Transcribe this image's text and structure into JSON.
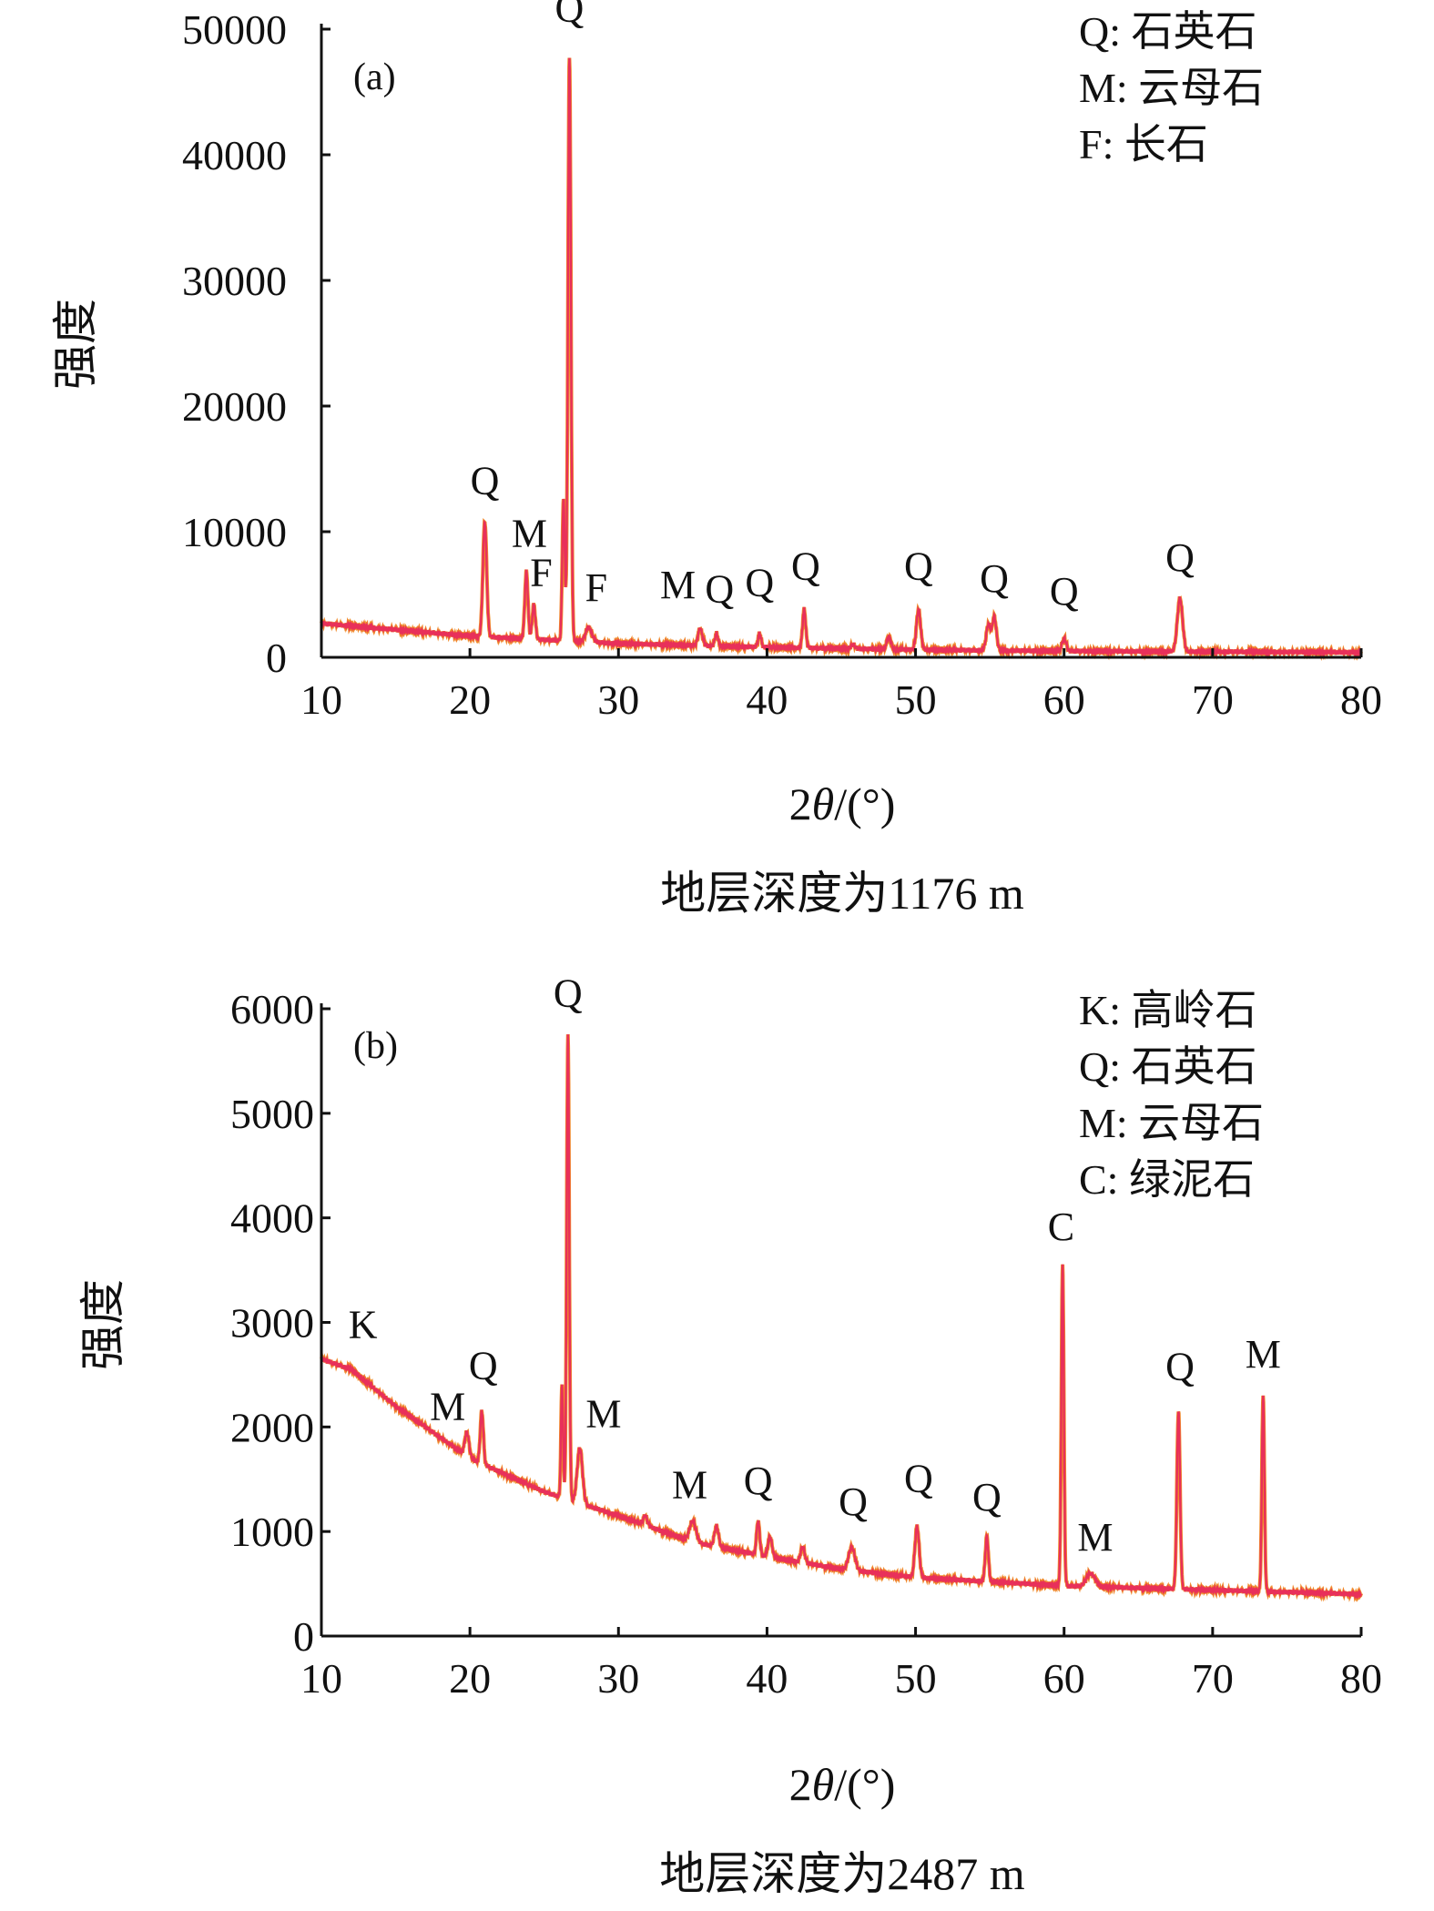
{
  "chart_data": [
    {
      "type": "line",
      "panel_label": "(a)",
      "xlabel_prefix": "2",
      "xlabel_theta": "θ",
      "xlabel_suffix": "/(°)",
      "ylabel": "强度",
      "caption": "地层深度为1176 m",
      "xlim": [
        10,
        80
      ],
      "ylim": [
        0,
        50000
      ],
      "x_ticks": [
        "10",
        "20",
        "30",
        "40",
        "50",
        "60",
        "70",
        "80"
      ],
      "y_ticks": [
        "0",
        "10000",
        "20000",
        "30000",
        "40000",
        "50000"
      ],
      "legend": [
        "Q: 石英石",
        "M: 云母石",
        "F: 长石"
      ],
      "line_color": "#e8305a",
      "baseline": [
        [
          10,
          2700
        ],
        [
          15,
          2200
        ],
        [
          20,
          1700
        ],
        [
          25,
          1400
        ],
        [
          30,
          1100
        ],
        [
          40,
          800
        ],
        [
          50,
          600
        ],
        [
          60,
          500
        ],
        [
          70,
          450
        ],
        [
          80,
          400
        ]
      ],
      "peaks": [
        {
          "x": 21.0,
          "y": 10800,
          "w": 0.18
        },
        {
          "x": 23.8,
          "y": 6800,
          "w": 0.15
        },
        {
          "x": 24.3,
          "y": 4200,
          "w": 0.15
        },
        {
          "x": 26.3,
          "y": 12600,
          "w": 0.12
        },
        {
          "x": 26.7,
          "y": 47800,
          "w": 0.14
        },
        {
          "x": 28.0,
          "y": 2400,
          "w": 0.3
        },
        {
          "x": 35.5,
          "y": 2300,
          "w": 0.2
        },
        {
          "x": 36.6,
          "y": 1900,
          "w": 0.15
        },
        {
          "x": 39.5,
          "y": 1900,
          "w": 0.15
        },
        {
          "x": 42.5,
          "y": 3800,
          "w": 0.15
        },
        {
          "x": 45.8,
          "y": 1000,
          "w": 0.2
        },
        {
          "x": 48.2,
          "y": 1600,
          "w": 0.2
        },
        {
          "x": 50.2,
          "y": 3800,
          "w": 0.2
        },
        {
          "x": 54.9,
          "y": 2600,
          "w": 0.2
        },
        {
          "x": 55.3,
          "y": 3200,
          "w": 0.2
        },
        {
          "x": 60.0,
          "y": 1500,
          "w": 0.2
        },
        {
          "x": 67.8,
          "y": 4700,
          "w": 0.25
        }
      ],
      "peak_labels": [
        {
          "text": "Q",
          "x": 21.0,
          "y": 13000
        },
        {
          "text": "M",
          "x": 24.0,
          "y": 8800
        },
        {
          "text": "F",
          "x": 24.8,
          "y": 5700
        },
        {
          "text": "Q",
          "x": 26.7,
          "y": 50600
        },
        {
          "text": "F",
          "x": 28.5,
          "y": 4500
        },
        {
          "text": "M",
          "x": 34.0,
          "y": 4700
        },
        {
          "text": "Q",
          "x": 36.8,
          "y": 4400
        },
        {
          "text": "Q",
          "x": 39.5,
          "y": 4900
        },
        {
          "text": "Q",
          "x": 42.6,
          "y": 6200
        },
        {
          "text": "Q",
          "x": 50.2,
          "y": 6200
        },
        {
          "text": "Q",
          "x": 55.3,
          "y": 5200
        },
        {
          "text": "Q",
          "x": 60.0,
          "y": 4200
        },
        {
          "text": "Q",
          "x": 67.8,
          "y": 6900
        }
      ]
    },
    {
      "type": "line",
      "panel_label": "(b)",
      "xlabel_prefix": "2",
      "xlabel_theta": "θ",
      "xlabel_suffix": "/(°)",
      "ylabel": "强度",
      "caption": "地层深度为2487 m",
      "xlim": [
        10,
        80
      ],
      "ylim": [
        0,
        6000
      ],
      "x_ticks": [
        "10",
        "20",
        "30",
        "40",
        "50",
        "60",
        "70",
        "80"
      ],
      "y_ticks": [
        "0",
        "1000",
        "2000",
        "3000",
        "4000",
        "5000",
        "6000"
      ],
      "legend": [
        "K: 高岭石",
        "Q: 石英石",
        "M: 云母石",
        "C: 绿泥石"
      ],
      "line_color": "#e8305a",
      "baseline": [
        [
          10,
          2650
        ],
        [
          12,
          2550
        ],
        [
          15,
          2200
        ],
        [
          18,
          1900
        ],
        [
          20,
          1700
        ],
        [
          25,
          1380
        ],
        [
          30,
          1150
        ],
        [
          35,
          900
        ],
        [
          40,
          760
        ],
        [
          45,
          640
        ],
        [
          50,
          560
        ],
        [
          55,
          520
        ],
        [
          60,
          480
        ],
        [
          65,
          460
        ],
        [
          70,
          440
        ],
        [
          75,
          420
        ],
        [
          80,
          400
        ]
      ],
      "peaks": [
        {
          "x": 19.8,
          "y": 1950,
          "w": 0.2
        },
        {
          "x": 20.8,
          "y": 2150,
          "w": 0.15
        },
        {
          "x": 26.2,
          "y": 2400,
          "w": 0.1
        },
        {
          "x": 26.6,
          "y": 5750,
          "w": 0.12
        },
        {
          "x": 27.4,
          "y": 1800,
          "w": 0.25
        },
        {
          "x": 31.8,
          "y": 1150,
          "w": 0.2
        },
        {
          "x": 35.0,
          "y": 1100,
          "w": 0.3
        },
        {
          "x": 36.6,
          "y": 1050,
          "w": 0.2
        },
        {
          "x": 39.4,
          "y": 1100,
          "w": 0.15
        },
        {
          "x": 40.2,
          "y": 950,
          "w": 0.2
        },
        {
          "x": 42.4,
          "y": 850,
          "w": 0.2
        },
        {
          "x": 45.7,
          "y": 850,
          "w": 0.3
        },
        {
          "x": 50.1,
          "y": 1050,
          "w": 0.2
        },
        {
          "x": 54.8,
          "y": 950,
          "w": 0.15
        },
        {
          "x": 59.9,
          "y": 3550,
          "w": 0.12
        },
        {
          "x": 61.8,
          "y": 600,
          "w": 0.4
        },
        {
          "x": 67.7,
          "y": 2150,
          "w": 0.15
        },
        {
          "x": 73.4,
          "y": 2300,
          "w": 0.12
        }
      ],
      "peak_labels": [
        {
          "text": "K",
          "x": 12.8,
          "y": 2850
        },
        {
          "text": "M",
          "x": 18.5,
          "y": 2070
        },
        {
          "text": "Q",
          "x": 20.9,
          "y": 2460
        },
        {
          "text": "Q",
          "x": 26.6,
          "y": 6020
        },
        {
          "text": "M",
          "x": 29.0,
          "y": 2000
        },
        {
          "text": "M",
          "x": 34.8,
          "y": 1320
        },
        {
          "text": "Q",
          "x": 39.4,
          "y": 1360
        },
        {
          "text": "Q",
          "x": 45.8,
          "y": 1160
        },
        {
          "text": "Q",
          "x": 50.2,
          "y": 1380
        },
        {
          "text": "Q",
          "x": 54.8,
          "y": 1200
        },
        {
          "text": "C",
          "x": 59.8,
          "y": 3790
        },
        {
          "text": "M",
          "x": 62.1,
          "y": 820
        },
        {
          "text": "Q",
          "x": 67.8,
          "y": 2450
        },
        {
          "text": "M",
          "x": 73.4,
          "y": 2570
        }
      ]
    }
  ]
}
